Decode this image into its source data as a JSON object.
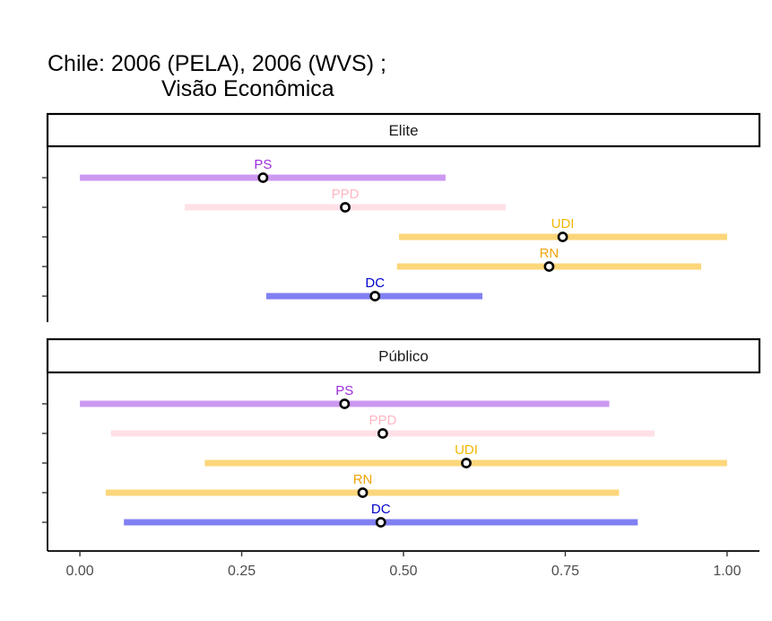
{
  "title": {
    "line1": "Chile: 2006 (PELA), 2006 (WVS) ;",
    "line2": "Visão Econômica"
  },
  "chart_data": {
    "type": "dot-range",
    "xlim": [
      -0.05,
      1.05
    ],
    "x_ticks": [
      0,
      0.25,
      0.5,
      0.75,
      1
    ],
    "x_tick_labels": [
      "0.00",
      "0.25",
      "0.50",
      "0.75",
      "1.00"
    ],
    "grid": false,
    "panels": [
      {
        "strip": "Elite",
        "parties": [
          {
            "name": "PS",
            "color": "#cc99f2",
            "label_color": "#9b30d9",
            "low": 0.0,
            "high": 0.565,
            "point": 0.283
          },
          {
            "name": "PPD",
            "color": "#ffe0e6",
            "label_color": "#ffb6c1",
            "low": 0.162,
            "high": 0.658,
            "point": 0.41
          },
          {
            "name": "UDI",
            "color": "#fcd67a",
            "label_color": "#f2b705",
            "low": 0.493,
            "high": 1.0,
            "point": 0.746
          },
          {
            "name": "RN",
            "color": "#fcd67a",
            "label_color": "#f0a30a",
            "low": 0.49,
            "high": 0.96,
            "point": 0.725
          },
          {
            "name": "DC",
            "color": "#8080f2",
            "label_color": "#0000cc",
            "low": 0.288,
            "high": 0.622,
            "point": 0.456
          }
        ]
      },
      {
        "strip": "Público",
        "parties": [
          {
            "name": "PS",
            "color": "#cc99f2",
            "label_color": "#9b30d9",
            "low": 0.0,
            "high": 0.818,
            "point": 0.409
          },
          {
            "name": "PPD",
            "color": "#ffe0e6",
            "label_color": "#ffb6c1",
            "low": 0.048,
            "high": 0.888,
            "point": 0.468
          },
          {
            "name": "UDI",
            "color": "#fcd67a",
            "label_color": "#f2b705",
            "low": 0.193,
            "high": 1.0,
            "point": 0.597
          },
          {
            "name": "RN",
            "color": "#fcd67a",
            "label_color": "#f0a30a",
            "low": 0.04,
            "high": 0.833,
            "point": 0.437
          },
          {
            "name": "DC",
            "color": "#8080f2",
            "label_color": "#0000cc",
            "low": 0.068,
            "high": 0.862,
            "point": 0.465
          }
        ]
      }
    ]
  }
}
